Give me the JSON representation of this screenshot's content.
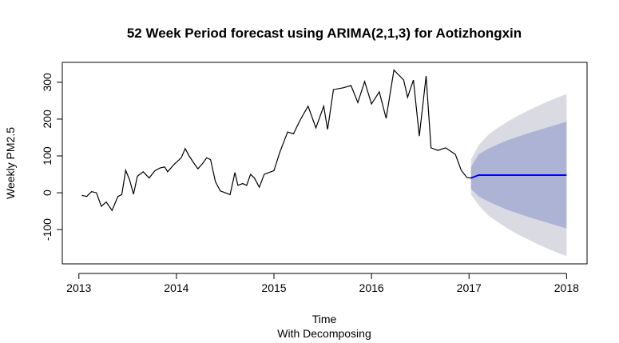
{
  "chart_data": {
    "type": "forecast",
    "title": "52 Week Period forecast using ARIMA(2,1,3) for Aotizhongxin",
    "x_label": "Time",
    "subtitle": "With Decomposing",
    "y_label": "Weekly PM2.5",
    "xlim": [
      2012.83,
      2018.21
    ],
    "ylim": [
      -193,
      354
    ],
    "xticks": [
      2013,
      2014,
      2015,
      2016,
      2017,
      2018
    ],
    "yticks": [
      -100,
      0,
      100,
      200,
      300
    ],
    "bands": [
      {
        "color": "#dadae3",
        "x": [
          2017.02,
          2017.1,
          2017.2,
          2017.3,
          2017.4,
          2017.5,
          2017.6,
          2017.7,
          2017.8,
          2017.9,
          2018.0
        ],
        "lower": [
          -5,
          -34,
          -62,
          -81,
          -98,
          -113,
          -126,
          -139,
          -151,
          -162,
          -172
        ],
        "upper": [
          90,
          130,
          158,
          177,
          194,
          209,
          222,
          235,
          247,
          258,
          268
        ]
      },
      {
        "color": "#adb3d5",
        "x": [
          2017.02,
          2017.1,
          2017.2,
          2017.3,
          2017.4,
          2017.5,
          2017.6,
          2017.7,
          2017.8,
          2017.9,
          2018.0
        ],
        "lower": [
          10,
          -10,
          -24,
          -36,
          -47,
          -56,
          -65,
          -73,
          -81,
          -89,
          -97
        ],
        "upper": [
          70,
          105,
          120,
          132,
          143,
          152,
          161,
          169,
          177,
          185,
          193
        ]
      }
    ],
    "series": [
      {
        "color": "#000000",
        "x": [
          2013.03,
          2013.08,
          2013.13,
          2013.18,
          2013.23,
          2013.28,
          2013.34,
          2013.4,
          2013.44,
          2013.48,
          2013.52,
          2013.56,
          2013.6,
          2013.66,
          2013.72,
          2013.78,
          2013.83,
          2013.88,
          2013.91,
          2013.98,
          2014.05,
          2014.09,
          2014.13,
          2014.18,
          2014.22,
          2014.27,
          2014.31,
          2014.35,
          2014.4,
          2014.45,
          2014.5,
          2014.55,
          2014.6,
          2014.63,
          2014.68,
          2014.72,
          2014.76,
          2014.8,
          2014.85,
          2014.9,
          2014.95,
          2015.0,
          2015.06,
          2015.14,
          2015.2,
          2015.27,
          2015.35,
          2015.43,
          2015.51,
          2015.55,
          2015.61,
          2015.71,
          2015.79,
          2015.86,
          2015.93,
          2016.0,
          2016.08,
          2016.15,
          2016.23,
          2016.33,
          2016.37,
          2016.43,
          2016.49,
          2016.56,
          2016.61,
          2016.68,
          2016.76,
          2016.86,
          2016.92,
          2016.98,
          2017.02
        ],
        "values": [
          -7,
          -10,
          3,
          0,
          -37,
          -25,
          -48,
          -10,
          -5,
          61,
          35,
          -4,
          45,
          57,
          40,
          60,
          67,
          70,
          57,
          78,
          95,
          120,
          100,
          80,
          65,
          80,
          95,
          90,
          30,
          5,
          0,
          -5,
          55,
          20,
          25,
          20,
          50,
          40,
          15,
          50,
          55,
          60,
          110,
          165,
          160,
          198,
          235,
          176,
          235,
          172,
          280,
          285,
          291,
          245,
          302,
          241,
          274,
          202,
          333,
          306,
          259,
          306,
          154,
          317,
          122,
          115,
          122,
          104,
          61,
          41,
          40
        ]
      },
      {
        "color": "#0000ff",
        "x": [
          2017.02,
          2017.1,
          2017.2,
          2017.3,
          2017.4,
          2017.5,
          2017.6,
          2017.7,
          2017.8,
          2017.9,
          2018.0
        ],
        "values": [
          40,
          48,
          48,
          48,
          48,
          48,
          48,
          48,
          48,
          48,
          48
        ]
      }
    ]
  }
}
